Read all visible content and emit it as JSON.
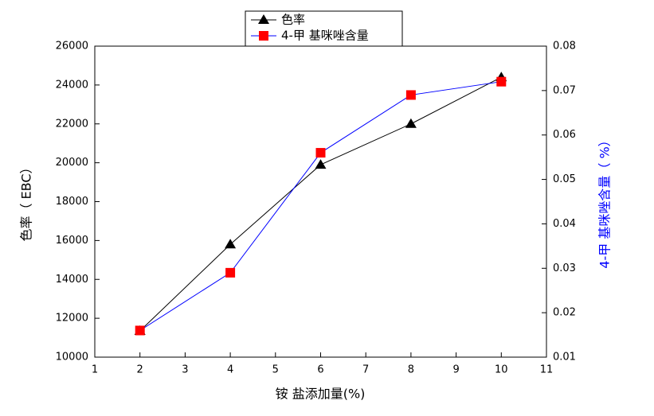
{
  "chart_data": {
    "type": "line",
    "x_label": "铵 盐添加量(%)",
    "y_label": "色率（ EBC）",
    "y2_label": "4-甲 基咪唑含量（ %）",
    "x": [
      2,
      4,
      6,
      8,
      10
    ],
    "series": [
      {
        "name": "色率",
        "color": "#000000",
        "marker": "triangle",
        "values": [
          11350,
          15800,
          19900,
          22000,
          24400
        ]
      },
      {
        "name": "4-甲 基咪唑含量",
        "color": "#0000ff",
        "marker_color": "#ff0000",
        "marker": "square",
        "axis": "y2",
        "values": [
          0.016,
          0.029,
          0.056,
          0.069,
          0.072
        ]
      }
    ],
    "xlim": [
      1,
      11
    ],
    "xticks": [
      1,
      2,
      3,
      4,
      5,
      6,
      7,
      8,
      9,
      10,
      11
    ],
    "ylim": [
      10000,
      26000
    ],
    "yticks": [
      10000,
      12000,
      14000,
      16000,
      18000,
      20000,
      22000,
      24000,
      26000
    ],
    "y2lim": [
      0.01,
      0.08
    ],
    "y2ticks": [
      0.01,
      0.02,
      0.03,
      0.04,
      0.05,
      0.06,
      0.07,
      0.08
    ],
    "legend": "top"
  }
}
